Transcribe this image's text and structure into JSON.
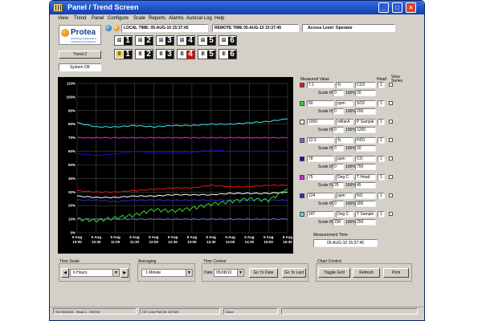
{
  "window": {
    "title": "Panel / Trend Screen",
    "controls": [
      "_",
      "□",
      "×"
    ]
  },
  "menu": [
    "View",
    "Trend",
    "Panel",
    "Configure",
    "Scale",
    "Reports",
    "Alarms",
    "Autocal Log",
    "Help"
  ],
  "header": {
    "local_time": "LOCAL TIME: 05-AUG-10 15:37:45",
    "remote_time": "REMOTE TIME 05-AUG-10 15:37:45",
    "access_level": "Access Level: Operator"
  },
  "logo": {
    "name": "Protea",
    "tagline": "technology leadership in measurement solutions"
  },
  "trend_label": "Trend 2",
  "system_status": "System OK",
  "panel_buttons": [
    "1",
    "2",
    "3",
    "4",
    "5",
    "6"
  ],
  "trend_buttons": [
    "1",
    "2",
    "3",
    "4",
    "5",
    "6"
  ],
  "colors": {
    "co2": "#e8141a",
    "so2": "#2ad92a",
    "psample": "#ffffff",
    "h2o": "#6a6ad8",
    "co": "#1010c8",
    "thead": "#e020e0",
    "no": "#2c2cc8",
    "tsample": "#38e8e8",
    "plot_bg": "#000000",
    "grid": "#555555",
    "active_trend_button": "#cc1010"
  },
  "measure_header": {
    "value": "Measured Value",
    "head": "Head",
    "view_series": "View Series"
  },
  "channels": [
    {
      "key": "co2",
      "value": "7.1",
      "unit": "%",
      "name": "CO2",
      "head": "1",
      "scale_0": "0",
      "scale_100": "20",
      "color": "#e8141a"
    },
    {
      "key": "so2",
      "value": "50",
      "unit": "ppm",
      "name": "SO2",
      "head": "1",
      "scale_0": "0",
      "scale_100": "200",
      "color": "#2ad92a"
    },
    {
      "key": "psample",
      "value": "1000",
      "unit": "mBarA",
      "name": "P Sample",
      "head": "1",
      "scale_0": "0",
      "scale_100": "1200",
      "color": "#ffffff"
    },
    {
      "key": "h2o",
      "value": "12.5",
      "unit": "%",
      "name": "H2O",
      "head": "1",
      "scale_0": "0",
      "scale_100": "20",
      "color": "#6a6ad8"
    },
    {
      "key": "co",
      "value": "78",
      "unit": "ppm",
      "name": "CO",
      "head": "1",
      "scale_0": "0",
      "scale_100": "750",
      "color": "#1010c8"
    },
    {
      "key": "thead",
      "value": "75",
      "unit": "Deg C",
      "name": "T Head",
      "head": "1",
      "scale_0": "25",
      "scale_100": "45",
      "color": "#e020e0"
    },
    {
      "key": "no",
      "value": "124",
      "unit": "ppm",
      "name": "NO",
      "head": "1",
      "scale_0": "0",
      "scale_100": "300",
      "color": "#2c2cc8"
    },
    {
      "key": "tsample",
      "value": "247",
      "unit": "Deg C",
      "name": "T Sample",
      "head": "1",
      "scale_0": "230",
      "scale_100": "250",
      "color": "#38e8e8"
    }
  ],
  "scale_labels": {
    "scale0": "Scale 0%",
    "scale100": "100%"
  },
  "measurement_time": {
    "label": "Measurement Time",
    "value": "05-AUG-10 15:37:45"
  },
  "controls": {
    "time_scale": {
      "label": "Time Scale",
      "value": "6 Hours"
    },
    "averaging": {
      "label": "Averaging",
      "value": "1 Minute"
    },
    "time_control": {
      "label": "Time Control",
      "date_label": "Date",
      "date_value": "05/08/10",
      "goto_date": "Go To Date",
      "goto_last": "Go To Last"
    },
    "chart_control": {
      "label": "Chart Control",
      "toggle_grid": "Toggle Grid",
      "refresh": "Refresh",
      "print": "Print"
    }
  },
  "status_bar": [
    "SN 0000165 - Head 1 - 050740",
    "CE Conn Poll OK 107325",
    "Done"
  ],
  "chart_data": {
    "type": "line",
    "ylabel": "",
    "y_ticks": [
      "0%",
      "10%",
      "20%",
      "30%",
      "40%",
      "50%",
      "60%",
      "70%",
      "80%",
      "90%",
      "100%",
      "110%"
    ],
    "ylim": [
      0,
      110
    ],
    "x": [
      "5 Aug 10:00",
      "5 Aug 10:30",
      "5 Aug 11:00",
      "5 Aug 11:30",
      "5 Aug 12:00",
      "5 Aug 12:30",
      "5 Aug 13:00",
      "5 Aug 13:30",
      "5 Aug 14:00",
      "5 Aug 14:30",
      "5 Aug 15:00",
      "5 Aug 15:30"
    ],
    "x_tick_lines": [
      [
        "5 Aug",
        "10:00"
      ],
      [
        "5 Aug",
        "10:30"
      ],
      [
        "5 Aug",
        "11:00"
      ],
      [
        "5 Aug",
        "11:30"
      ],
      [
        "5 Aug",
        "12:00"
      ],
      [
        "5 Aug",
        "12:30"
      ],
      [
        "5 Aug",
        "13:00"
      ],
      [
        "5 Aug",
        "13:30"
      ],
      [
        "5 Aug",
        "14:00"
      ],
      [
        "5 Aug",
        "14:30"
      ],
      [
        "5 Aug",
        "15:00"
      ],
      [
        "5 Aug",
        "15:30"
      ]
    ],
    "series": [
      {
        "key": "tsample",
        "color": "#38e8e8",
        "values": [
          81,
          78,
          78,
          79,
          78,
          79,
          79,
          80,
          80,
          81,
          82,
          84
        ]
      },
      {
        "key": "thead",
        "color": "#e020e0",
        "values": [
          70,
          70,
          70,
          70,
          70,
          70,
          70,
          70,
          70,
          70,
          70,
          70
        ]
      },
      {
        "key": "co",
        "color": "#1010c8",
        "values": [
          58,
          57,
          58,
          60,
          59,
          59,
          59,
          61,
          60,
          60,
          60,
          60
        ]
      },
      {
        "key": "co2",
        "color": "#e8141a",
        "values": [
          31,
          30,
          30,
          31,
          32,
          33,
          33,
          35,
          34,
          34,
          35,
          35
        ]
      },
      {
        "key": "psample",
        "color": "#ffffff",
        "values": [
          27,
          26,
          26,
          27,
          27,
          28,
          28,
          28,
          29,
          29,
          29,
          30
        ]
      },
      {
        "key": "no",
        "color": "#2c2cc8",
        "values": [
          24,
          24,
          23,
          24,
          24,
          24,
          24,
          24,
          24,
          24,
          24,
          24
        ]
      },
      {
        "key": "so2",
        "color": "#2ad92a",
        "values": [
          10,
          9,
          11,
          13,
          17,
          16,
          18,
          21,
          23,
          25,
          24,
          32
        ]
      },
      {
        "key": "h2o",
        "color": "#6a6ad8",
        "values": [
          10,
          10,
          10,
          10,
          10,
          10,
          10,
          10,
          10,
          10,
          10,
          10
        ]
      }
    ]
  }
}
